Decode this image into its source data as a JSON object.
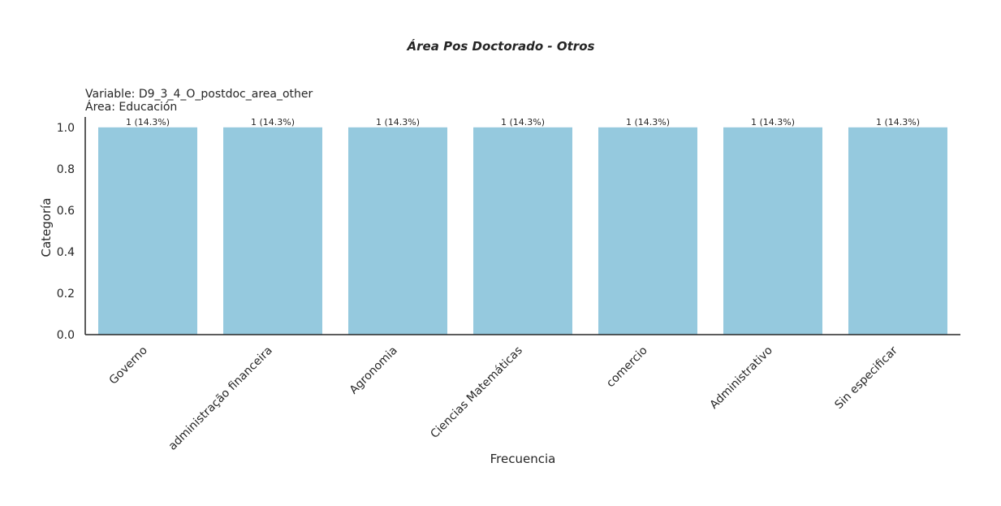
{
  "chart_data": {
    "type": "bar",
    "title": "Área Pos Doctorado - Otros",
    "subtitle_lines": [
      "Variable: D9_3_4_O_postdoc_area_other",
      "Área: Educación"
    ],
    "xlabel": "Frecuencia",
    "ylabel": "Categoría",
    "categories": [
      "Governo",
      "administração financeira",
      "Agronomia",
      "Ciencias Matemáticas",
      "comercio",
      "Administrativo",
      "Sin especificar"
    ],
    "values": [
      1,
      1,
      1,
      1,
      1,
      1,
      1
    ],
    "data_labels": [
      "1 (14.3%)",
      "1 (14.3%)",
      "1 (14.3%)",
      "1 (14.3%)",
      "1 (14.3%)",
      "1 (14.3%)",
      "1 (14.3%)"
    ],
    "ylim": [
      0,
      1.05
    ],
    "yticks": [
      0.0,
      0.2,
      0.4,
      0.6,
      0.8,
      1.0
    ],
    "ytick_labels": [
      "0.0",
      "0.2",
      "0.4",
      "0.6",
      "0.8",
      "1.0"
    ],
    "grid": false,
    "colors": {
      "bar": "#95c9de",
      "axis": "#262626",
      "text": "#262626"
    }
  }
}
